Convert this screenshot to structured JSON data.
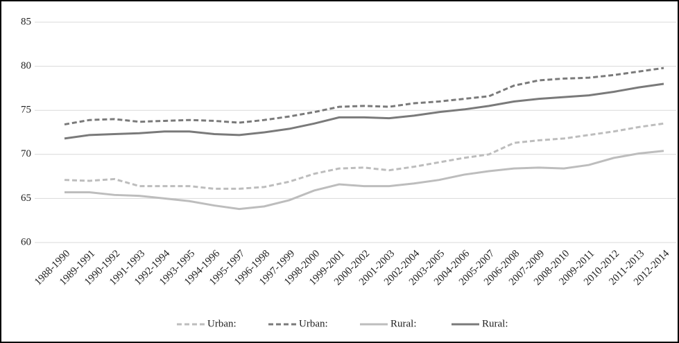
{
  "chart_data": {
    "type": "line",
    "categories": [
      "1988-1990",
      "1989-1991",
      "1990-1992",
      "1991-1993",
      "1992-1994",
      "1993-1995",
      "1994-1996",
      "1995-1997",
      "1996-1998",
      "1997-1999",
      "1998-2000",
      "1999-2001",
      "2000-2002",
      "2001-2003",
      "2002-2004",
      "2003-2005",
      "2004-2006",
      "2005-2007",
      "2006-2008",
      "2007-2009",
      "2008-2010",
      "2009-2011",
      "2010-2012",
      "2011-2013",
      "2012-2014"
    ],
    "series": [
      {
        "name": "Urban:",
        "color": "#bdbdbd",
        "dashed": true,
        "values": [
          67.1,
          67.0,
          67.2,
          66.4,
          66.4,
          66.4,
          66.1,
          66.1,
          66.3,
          66.9,
          67.8,
          68.4,
          68.5,
          68.2,
          68.6,
          69.1,
          69.6,
          70.0,
          71.3,
          71.6,
          71.8,
          72.2,
          72.6,
          73.1,
          73.5
        ]
      },
      {
        "name": "Urban:",
        "color": "#7a7a7a",
        "dashed": true,
        "values": [
          73.4,
          73.9,
          74.0,
          73.7,
          73.8,
          73.9,
          73.8,
          73.6,
          73.9,
          74.3,
          74.8,
          75.4,
          75.5,
          75.4,
          75.8,
          76.0,
          76.3,
          76.6,
          77.8,
          78.4,
          78.6,
          78.7,
          79.0,
          79.4,
          79.8
        ]
      },
      {
        "name": "Rural:",
        "color": "#bdbdbd",
        "dashed": false,
        "values": [
          65.7,
          65.7,
          65.4,
          65.3,
          65.0,
          64.7,
          64.2,
          63.8,
          64.1,
          64.8,
          65.9,
          66.6,
          66.4,
          66.4,
          66.7,
          67.1,
          67.7,
          68.1,
          68.4,
          68.5,
          68.4,
          68.8,
          69.6,
          70.1,
          70.4
        ]
      },
      {
        "name": "Rural:",
        "color": "#7a7a7a",
        "dashed": false,
        "values": [
          71.8,
          72.2,
          72.3,
          72.4,
          72.6,
          72.6,
          72.3,
          72.2,
          72.5,
          72.9,
          73.5,
          74.2,
          74.2,
          74.1,
          74.4,
          74.8,
          75.1,
          75.5,
          76.0,
          76.3,
          76.5,
          76.7,
          77.1,
          77.6,
          78.0
        ]
      }
    ],
    "ylim": [
      60,
      85
    ],
    "yticks": [
      60,
      65,
      70,
      75,
      80,
      85
    ],
    "grid": true
  }
}
